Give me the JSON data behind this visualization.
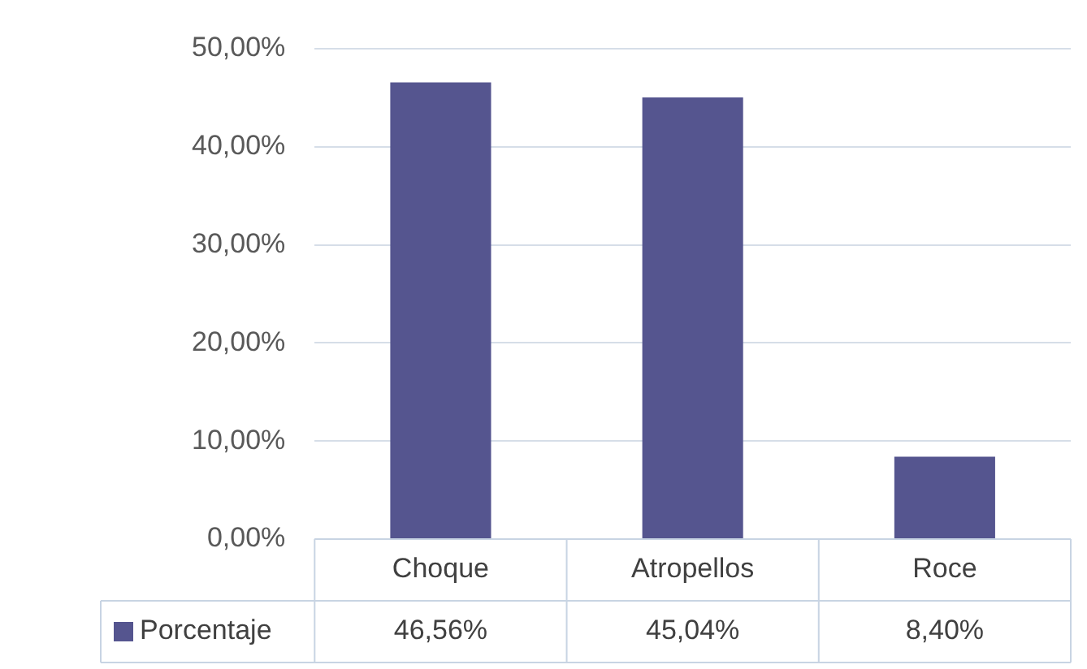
{
  "chart_data": {
    "type": "bar",
    "categories": [
      "Choque",
      "Atropellos",
      "Roce"
    ],
    "series": [
      {
        "name": "Porcentaje",
        "color": "#55558f",
        "values": [
          46.56,
          45.04,
          8.4
        ],
        "value_labels": [
          "46,56%",
          "45,04%",
          "8,40%"
        ]
      }
    ],
    "ylim": [
      0,
      50
    ],
    "yticks": [
      {
        "value": 0,
        "label": "0,00%"
      },
      {
        "value": 10,
        "label": "10,00%"
      },
      {
        "value": 20,
        "label": "20,00%"
      },
      {
        "value": 30,
        "label": "30,00%"
      },
      {
        "value": 40,
        "label": "40,00%"
      },
      {
        "value": 50,
        "label": "50,00%"
      }
    ],
    "grid": "y"
  }
}
